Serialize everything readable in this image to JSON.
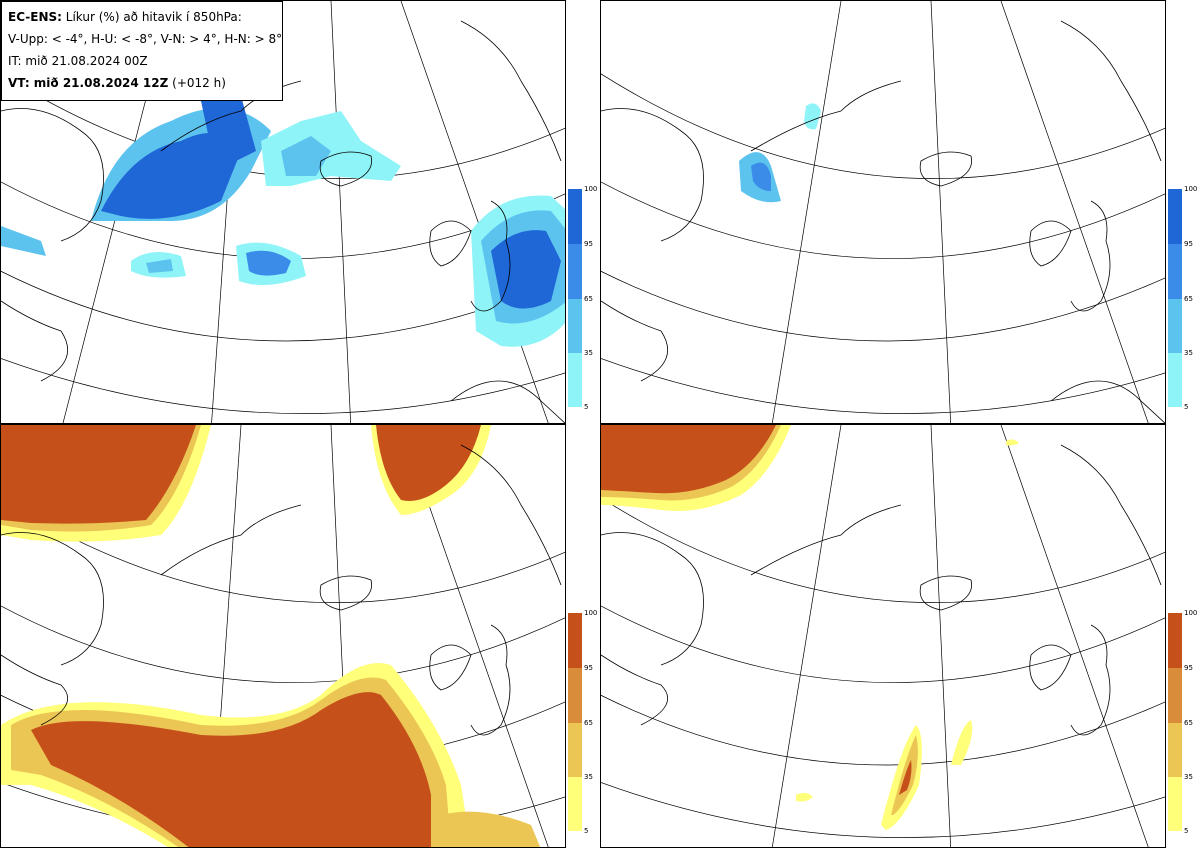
{
  "info": {
    "line1_bold": "EC-ENS:",
    "line1_rest": "Líkur (%) að hitavik í 850hPa:",
    "line2": "V-Upp: < -4°, H-U: < -8°, V-N: > 4°, H-N: > 8°",
    "line3": "IT: mið 21.08.2024 00Z",
    "line4_bold": "VT: mið 21.08.2024 12Z",
    "line4_rest": "(+012 h)"
  },
  "colorbars": {
    "labels": [
      "100",
      "95",
      "65",
      "35",
      "5"
    ],
    "blue_colors": [
      "#1f66d6",
      "#3b8ce8",
      "#5cc3ef",
      "#8ef4f8"
    ],
    "orange_colors": [
      "#c5501a",
      "#d98c3a",
      "#ecc655",
      "#ffff7a"
    ]
  },
  "panels": [
    {
      "id": "upper-left",
      "scheme": "blue"
    },
    {
      "id": "upper-right",
      "scheme": "blue"
    },
    {
      "id": "lower-left",
      "scheme": "orange"
    },
    {
      "id": "lower-right",
      "scheme": "orange"
    }
  ]
}
